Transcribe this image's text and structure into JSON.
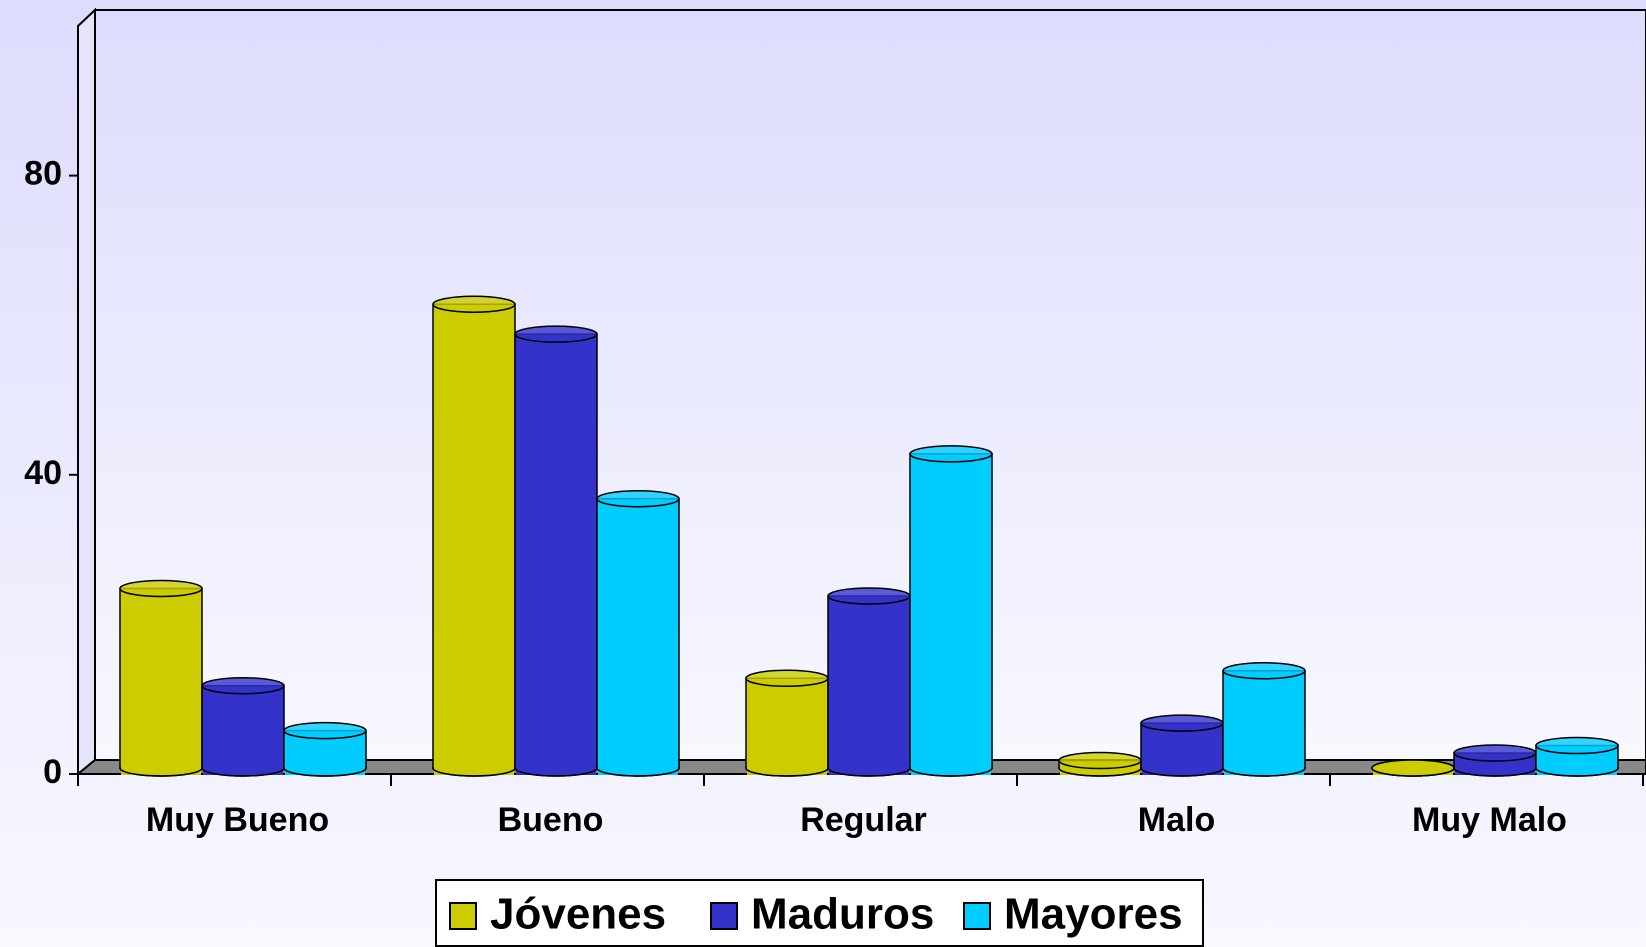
{
  "chart_data": {
    "type": "bar3d",
    "categories": [
      "Muy Bueno",
      "Bueno",
      "Regular",
      "Malo",
      "Muy Malo"
    ],
    "series": [
      {
        "name": "Jóvenes",
        "color": "#cccc00",
        "values": [
          24,
          62,
          12,
          1,
          0
        ]
      },
      {
        "name": "Maduros",
        "color": "#3333cc",
        "values": [
          11,
          58,
          23,
          6,
          2
        ]
      },
      {
        "name": "Mayores",
        "color": "#00ccff",
        "values": [
          5,
          36,
          42,
          13,
          3
        ]
      }
    ],
    "ylim": [
      0,
      100
    ],
    "yticks": [
      0,
      40,
      80
    ],
    "legend": "bottom"
  }
}
